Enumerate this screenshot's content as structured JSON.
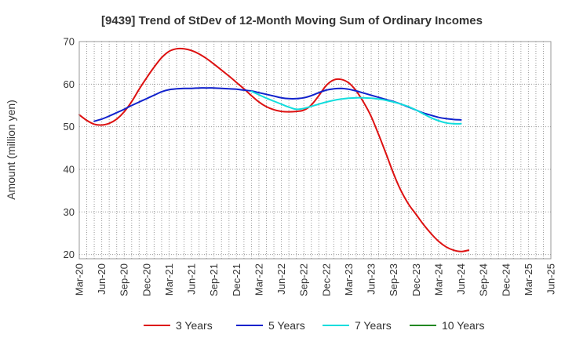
{
  "chart_data": {
    "type": "line",
    "title": "[9439]  Trend of StDev of 12-Month Moving Sum of Ordinary Incomes",
    "xlabel": "",
    "ylabel": "Amount (million yen)",
    "ylim": [
      19,
      70
    ],
    "yticks": [
      20,
      30,
      40,
      50,
      60,
      70
    ],
    "x_tick_labels": [
      "Mar-20",
      "Jun-20",
      "Sep-20",
      "Dec-20",
      "Mar-21",
      "Jun-21",
      "Sep-21",
      "Dec-21",
      "Mar-22",
      "Jun-22",
      "Sep-22",
      "Dec-22",
      "Mar-23",
      "Jun-23",
      "Sep-23",
      "Dec-23",
      "Mar-24",
      "Jun-24",
      "Sep-24",
      "Dec-24",
      "Mar-25",
      "Jun-25"
    ],
    "grid": true,
    "legend_position": "bottom",
    "series": [
      {
        "name": "3 Years",
        "color": "#dd1111",
        "start_index": 0,
        "values": [
          52.8,
          51.5,
          50.6,
          50.4,
          50.8,
          51.8,
          53.5,
          55.9,
          58.8,
          61.5,
          64.0,
          66.2,
          67.7,
          68.3,
          68.3,
          67.9,
          67.1,
          66.0,
          64.7,
          63.3,
          61.9,
          60.4,
          58.9,
          57.3,
          55.8,
          54.7,
          54.0,
          53.6,
          53.5,
          53.6,
          53.9,
          55.1,
          57.3,
          59.7,
          61.0,
          61.1,
          60.3,
          58.4,
          55.7,
          52.4,
          48.1,
          43.6,
          38.9,
          34.9,
          31.8,
          29.4,
          27.0,
          24.9,
          23.1,
          21.8,
          21.0,
          20.7,
          21.0
        ]
      },
      {
        "name": "5 Years",
        "color": "#1122cc",
        "start_index": 2,
        "values": [
          51.3,
          51.8,
          52.5,
          53.3,
          54.1,
          55.0,
          55.8,
          56.6,
          57.4,
          58.2,
          58.7,
          58.9,
          59.0,
          59.0,
          59.1,
          59.1,
          59.1,
          59.0,
          58.9,
          58.8,
          58.6,
          58.4,
          58.0,
          57.6,
          57.2,
          56.8,
          56.6,
          56.6,
          56.8,
          57.3,
          58.0,
          58.6,
          58.9,
          59.0,
          58.8,
          58.4,
          57.9,
          57.4,
          56.9,
          56.4,
          55.9,
          55.3,
          54.6,
          53.9,
          53.2,
          52.7,
          52.2,
          51.9,
          51.7,
          51.6
        ]
      },
      {
        "name": "7 Years",
        "color": "#11dddd",
        "start_index": 23,
        "values": [
          58.3,
          57.5,
          56.7,
          56.0,
          55.3,
          54.6,
          54.1,
          54.3,
          54.8,
          55.3,
          55.8,
          56.2,
          56.5,
          56.7,
          56.8,
          56.8,
          56.7,
          56.5,
          56.2,
          55.8,
          55.3,
          54.7,
          53.9,
          53.0,
          52.1,
          51.4,
          50.9,
          50.7,
          50.7
        ]
      },
      {
        "name": "10 Years",
        "color": "#228822",
        "start_index": 0,
        "values": []
      }
    ]
  }
}
